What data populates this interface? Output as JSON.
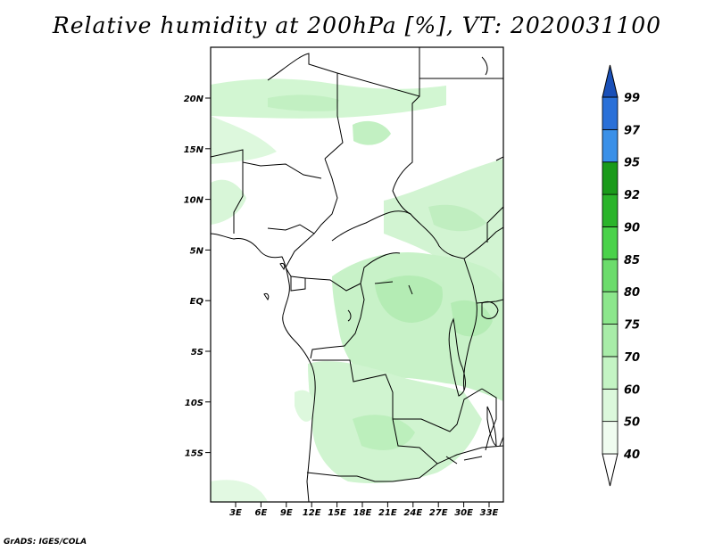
{
  "title": "Relative humidity at 200hPa [%], VT: 2020031100",
  "credit": "GrADS: IGES/COLA",
  "map": {
    "lat_ticks": [
      "20N",
      "15N",
      "10N",
      "5N",
      "EQ",
      "5S",
      "10S",
      "15S"
    ],
    "lon_ticks": [
      "3E",
      "6E",
      "9E",
      "12E",
      "15E",
      "18E",
      "21E",
      "24E",
      "27E",
      "30E",
      "33E"
    ]
  },
  "colorbar": {
    "levels": [
      "40",
      "50",
      "60",
      "70",
      "75",
      "80",
      "85",
      "90",
      "92",
      "95",
      "97",
      "99"
    ],
    "colors": [
      "#f0fcf0",
      "#dcf8dc",
      "#c4f4c4",
      "#a8eca8",
      "#8ce68c",
      "#6cdc6c",
      "#4ad24a",
      "#2ab42a",
      "#1a9a1a",
      "#3a90e8",
      "#2a70d8",
      "#1a50b8"
    ]
  }
}
